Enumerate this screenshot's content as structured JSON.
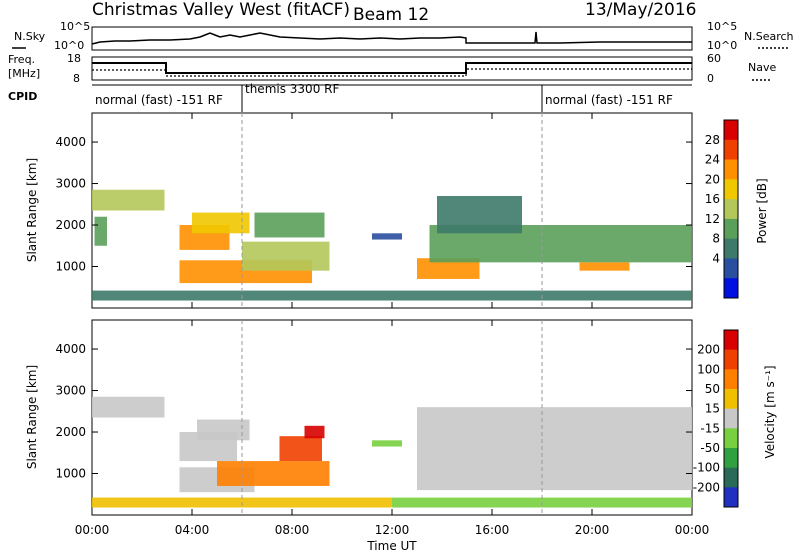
{
  "header": {
    "title": "Christmas Valley West (fitACF)",
    "beam": "Beam 12",
    "date": "13/May/2016"
  },
  "strip_labels": {
    "nsky": "N.Sky",
    "nsky_top": "10^5",
    "nsky_bottom": "10^0",
    "nsearch": "N.Search",
    "nsearch_top": "10^5",
    "nsearch_bottom": "10^0",
    "freq": "Freq.",
    "freq_unit": "[MHz]",
    "freq_top": "18",
    "freq_bottom": "8",
    "nave": "Nave",
    "nave_top": "60",
    "nave_bottom": "0",
    "cpid": "CPID"
  },
  "cpid_modes": [
    {
      "label": "normal (fast) -151 RF",
      "start_hr": 0,
      "end_hr": 6
    },
    {
      "label": "themis 3300 RF",
      "start_hr": 6,
      "end_hr": 18
    },
    {
      "label": "normal (fast) -151 RF",
      "start_hr": 18,
      "end_hr": 24
    }
  ],
  "chart_data": [
    {
      "type": "heatmap",
      "name": "power",
      "ylabel": "Slant Range [km]",
      "yticks": [
        "4000",
        "3000",
        "2000",
        "1000"
      ],
      "colorbar_label": "Power [dB]",
      "colorbar_ticks": [
        "28",
        "24",
        "20",
        "16",
        "12",
        "8",
        "4"
      ],
      "colors": [
        "#0010e0",
        "#2a4fa0",
        "#3e7a6a",
        "#5aa05a",
        "#b4c85a",
        "#f0c800",
        "#ff9000",
        "#f04000",
        "#d80000"
      ],
      "regions": [
        {
          "t0": 0.0,
          "t1": 2.9,
          "r0": 2350,
          "r1": 2850,
          "level": 4
        },
        {
          "t0": 0.1,
          "t1": 0.6,
          "r0": 1500,
          "r1": 2200,
          "level": 3
        },
        {
          "t0": 3.5,
          "t1": 5.5,
          "r0": 1400,
          "r1": 2000,
          "level": 6
        },
        {
          "t0": 4.0,
          "t1": 6.3,
          "r0": 1800,
          "r1": 2300,
          "level": 5
        },
        {
          "t0": 3.5,
          "t1": 8.8,
          "r0": 600,
          "r1": 1150,
          "level": 6
        },
        {
          "t0": 6.0,
          "t1": 9.5,
          "r0": 900,
          "r1": 1600,
          "level": 4
        },
        {
          "t0": 6.5,
          "t1": 9.3,
          "r0": 1700,
          "r1": 2300,
          "level": 3
        },
        {
          "t0": 11.2,
          "t1": 12.4,
          "r0": 1650,
          "r1": 1800,
          "level": 1
        },
        {
          "t0": 13.0,
          "t1": 15.5,
          "r0": 700,
          "r1": 1200,
          "level": 6
        },
        {
          "t0": 13.5,
          "t1": 24.0,
          "r0": 1100,
          "r1": 2000,
          "level": 3
        },
        {
          "t0": 13.8,
          "t1": 17.2,
          "r0": 1800,
          "r1": 2700,
          "level": 2
        },
        {
          "t0": 19.5,
          "t1": 21.5,
          "r0": 900,
          "r1": 1100,
          "level": 6
        },
        {
          "t0": 0.0,
          "t1": 24.0,
          "r0": 180,
          "r1": 420,
          "level": 2
        }
      ]
    },
    {
      "type": "heatmap",
      "name": "velocity",
      "ylabel": "Slant Range [km]",
      "yticks": [
        "4000",
        "3000",
        "2000",
        "1000"
      ],
      "colorbar_label": "Velocity [m s⁻¹]",
      "colorbar_ticks": [
        "200",
        "100",
        "50",
        "15",
        "-15",
        "-50",
        "-100",
        "-200"
      ],
      "colors": [
        "#2030c0",
        "#2a6a58",
        "#30a040",
        "#78d040",
        "#c8c8c8",
        "#f0c000",
        "#ff8000",
        "#f04000",
        "#d80000"
      ],
      "regions": [
        {
          "t0": 0.0,
          "t1": 2.9,
          "r0": 2350,
          "r1": 2850,
          "level": 4
        },
        {
          "t0": 3.5,
          "t1": 5.8,
          "r0": 1300,
          "r1": 2000,
          "level": 4
        },
        {
          "t0": 4.2,
          "t1": 6.3,
          "r0": 1800,
          "r1": 2300,
          "level": 4
        },
        {
          "t0": 3.5,
          "t1": 6.5,
          "r0": 550,
          "r1": 1150,
          "level": 4
        },
        {
          "t0": 5.0,
          "t1": 9.5,
          "r0": 700,
          "r1": 1300,
          "level": 6
        },
        {
          "t0": 7.5,
          "t1": 9.2,
          "r0": 1300,
          "r1": 1900,
          "level": 7
        },
        {
          "t0": 8.5,
          "t1": 9.3,
          "r0": 1850,
          "r1": 2150,
          "level": 8
        },
        {
          "t0": 11.2,
          "t1": 12.4,
          "r0": 1650,
          "r1": 1800,
          "level": 3
        },
        {
          "t0": 13.0,
          "t1": 24.0,
          "r0": 600,
          "r1": 2600,
          "level": 4
        },
        {
          "t0": 0.0,
          "t1": 12.0,
          "r0": 180,
          "r1": 420,
          "level": 5
        },
        {
          "t0": 12.0,
          "t1": 24.0,
          "r0": 180,
          "r1": 420,
          "level": 3
        }
      ]
    }
  ],
  "xaxis": {
    "label": "Time UT",
    "ticks": [
      "00:00",
      "04:00",
      "08:00",
      "12:00",
      "16:00",
      "20:00",
      "00:00"
    ]
  }
}
